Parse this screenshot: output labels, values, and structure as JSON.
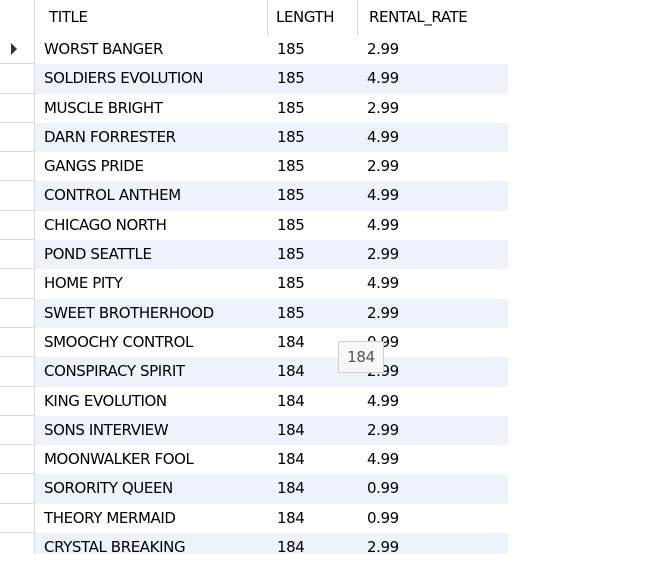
{
  "grid": {
    "columns": [
      "TITLE",
      "LENGTH",
      "RENTAL_RATE"
    ],
    "rows": [
      [
        "WORST BANGER",
        "185",
        "2.99"
      ],
      [
        "SOLDIERS EVOLUTION",
        "185",
        "4.99"
      ],
      [
        "MUSCLE BRIGHT",
        "185",
        "2.99"
      ],
      [
        "DARN FORRESTER",
        "185",
        "4.99"
      ],
      [
        "GANGS PRIDE",
        "185",
        "2.99"
      ],
      [
        "CONTROL ANTHEM",
        "185",
        "4.99"
      ],
      [
        "CHICAGO NORTH",
        "185",
        "4.99"
      ],
      [
        "POND SEATTLE",
        "185",
        "2.99"
      ],
      [
        "HOME PITY",
        "185",
        "4.99"
      ],
      [
        "SWEET BROTHERHOOD",
        "185",
        "2.99"
      ],
      [
        "SMOOCHY CONTROL",
        "184",
        "0.99"
      ],
      [
        "CONSPIRACY SPIRIT",
        "184",
        "2.99"
      ],
      [
        "KING EVOLUTION",
        "184",
        "4.99"
      ],
      [
        "SONS INTERVIEW",
        "184",
        "2.99"
      ],
      [
        "MOONWALKER FOOL",
        "184",
        "4.99"
      ],
      [
        "SORORITY QUEEN",
        "184",
        "0.99"
      ],
      [
        "THEORY MERMAID",
        "184",
        "0.99"
      ],
      [
        "CRYSTAL BREAKING",
        "184",
        "2.99"
      ]
    ],
    "current_row_index": 0
  },
  "tooltip": {
    "text": "184"
  },
  "colors": {
    "alt_row": "#eef3fb",
    "grid_line": "#d8d8d8",
    "row_indicator_arrow": "#333333"
  },
  "icons": {
    "current_row": "current-row-arrow-icon"
  }
}
